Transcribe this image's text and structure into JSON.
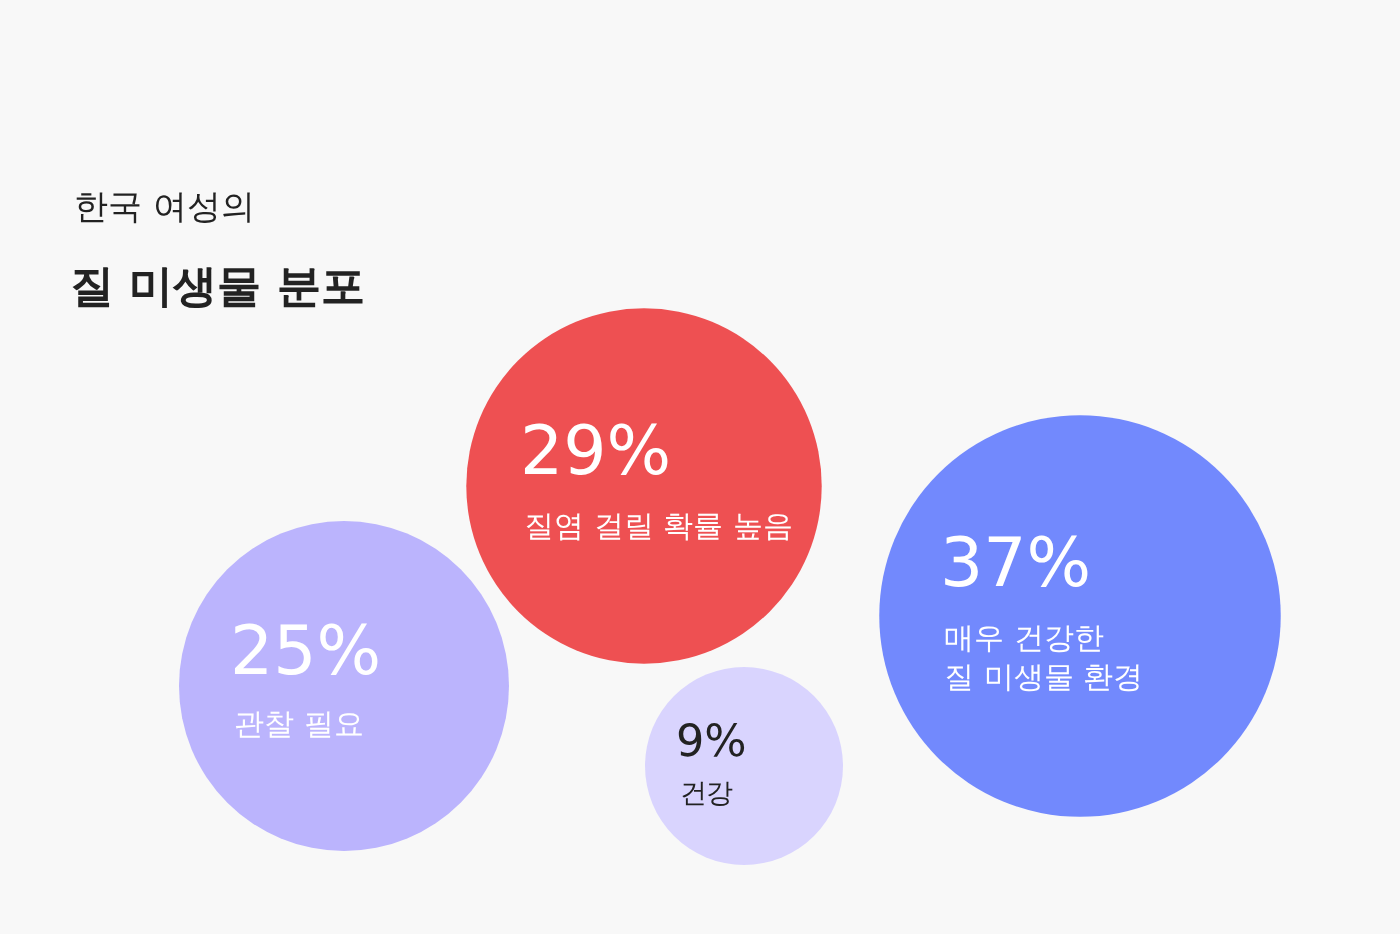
{
  "chart_data": {
    "type": "other",
    "title": "질 미생물 분포",
    "subtitle": "한국 여성의",
    "categories": [
      "관찰 필요",
      "질염 걸릴 확률 높음",
      "건강",
      "매우 건강한\n질 미생물 환경"
    ],
    "values": [
      25,
      29,
      9,
      37
    ],
    "value_labels": [
      "25%",
      "29%",
      "9%",
      "37%"
    ],
    "colors": [
      "#bbb4fd",
      "#ee5052",
      "#d9d4fe",
      "#7289fd"
    ]
  }
}
